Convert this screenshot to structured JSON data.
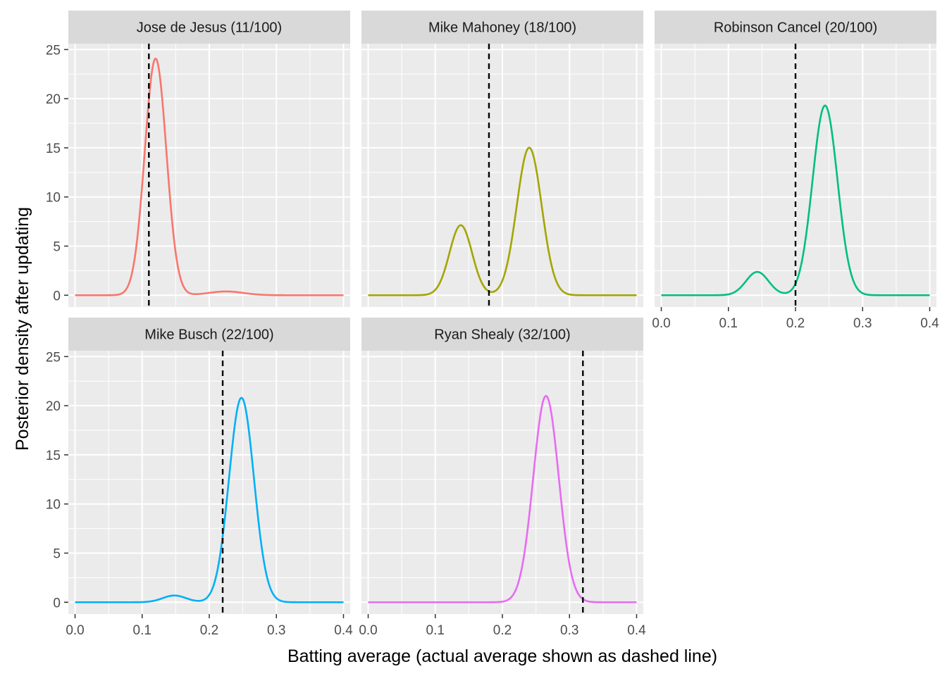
{
  "chart_data": {
    "type": "line",
    "xlabel": "Batting average (actual average shown as dashed line)",
    "ylabel": "Posterior density after updating",
    "xlim": [
      -0.01,
      0.41
    ],
    "ylim": [
      -1.2,
      25.6
    ],
    "x_ticks": [
      0.0,
      0.1,
      0.2,
      0.3,
      0.4
    ],
    "x_tick_labels": [
      "0.0",
      "0.1",
      "0.2",
      "0.3",
      "0.4"
    ],
    "y_ticks": [
      0,
      5,
      10,
      15,
      20,
      25
    ],
    "y_tick_labels": [
      "0",
      "5",
      "10",
      "15",
      "20",
      "25"
    ],
    "grid": true,
    "panels": [
      {
        "title": "Jose de Jesus (11/100)",
        "actual_average": 0.11,
        "color": "#F8766D",
        "components": [
          {
            "weight": 0.975,
            "mean": 0.12,
            "sd": 0.01615
          },
          {
            "weight": 0.025,
            "mean": 0.225,
            "sd": 0.026
          }
        ]
      },
      {
        "title": "Mike Mahoney (18/100)",
        "actual_average": 0.18,
        "color": "#A3A500",
        "components": [
          {
            "weight": 0.3,
            "mean": 0.138,
            "sd": 0.0168
          },
          {
            "weight": 0.7,
            "mean": 0.24,
            "sd": 0.0186
          }
        ]
      },
      {
        "title": "Robinson Cancel (20/100)",
        "actual_average": 0.2,
        "color": "#00BF7D",
        "components": [
          {
            "weight": 0.1,
            "mean": 0.143,
            "sd": 0.0168
          },
          {
            "weight": 0.9,
            "mean": 0.244,
            "sd": 0.0186
          }
        ]
      },
      {
        "title": "Mike Busch (22/100)",
        "actual_average": 0.22,
        "color": "#00B0F6",
        "components": [
          {
            "weight": 0.03,
            "mean": 0.148,
            "sd": 0.0175
          },
          {
            "weight": 0.97,
            "mean": 0.248,
            "sd": 0.0186
          }
        ]
      },
      {
        "title": "Ryan Shealy (32/100)",
        "actual_average": 0.32,
        "color": "#E76BF3",
        "components": [
          {
            "weight": 1.0,
            "mean": 0.265,
            "sd": 0.019
          }
        ]
      }
    ]
  }
}
